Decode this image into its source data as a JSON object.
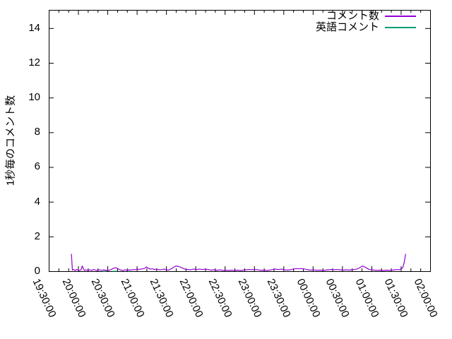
{
  "chart_data": {
    "type": "line",
    "title": "",
    "xlabel": "",
    "ylabel": "1秒毎のコメント数",
    "ylim": [
      0,
      15.05
    ],
    "yticks": [
      0,
      2,
      4,
      6,
      8,
      10,
      12,
      14
    ],
    "xtick_labels": [
      "19:30:00",
      "20:00:00",
      "20:30:00",
      "21:00:00",
      "21:30:00",
      "22:00:00",
      "22:30:00",
      "23:00:00",
      "23:30:00",
      "00:00:00",
      "00:30:00",
      "01:00:00",
      "01:30:00",
      "02:00:00"
    ],
    "x_total_minutes": 390,
    "xtick_interval_minutes": 30,
    "minor_xtick_interval_minutes": 10,
    "grid": "off",
    "legend_position": "top-right-inside",
    "axis_color": "#000000",
    "background_color": "#ffffff",
    "series": [
      {
        "name": "コメント数",
        "color": "#9400d3",
        "points": [
          [
            23.2,
            1.0
          ],
          [
            24.2,
            0.06
          ],
          [
            25.5,
            0.1
          ],
          [
            27,
            0.04
          ],
          [
            28.5,
            0.1
          ],
          [
            30,
            0.06
          ],
          [
            31.5,
            0.04
          ],
          [
            33,
            0.08
          ],
          [
            34.3,
            0.3
          ],
          [
            35.5,
            0.14
          ],
          [
            36.5,
            0.04
          ],
          [
            38,
            0.08
          ],
          [
            40,
            0.04
          ],
          [
            42,
            0.08
          ],
          [
            44,
            0.05
          ],
          [
            46,
            0.1
          ],
          [
            48,
            0.06
          ],
          [
            50,
            0.04
          ],
          [
            52,
            0.08
          ],
          [
            54,
            0.05
          ],
          [
            56,
            0.08
          ],
          [
            58,
            0.06
          ],
          [
            60,
            0.04
          ],
          [
            62,
            0.06
          ],
          [
            64,
            0.1
          ],
          [
            66,
            0.16
          ],
          [
            68,
            0.2
          ],
          [
            70,
            0.17
          ],
          [
            72,
            0.1
          ],
          [
            74,
            0.06
          ],
          [
            76,
            0.04
          ],
          [
            78,
            0.08
          ],
          [
            80,
            0.05
          ],
          [
            82,
            0.08
          ],
          [
            84,
            0.06
          ],
          [
            86,
            0.1
          ],
          [
            88,
            0.08
          ],
          [
            90,
            0.12
          ],
          [
            92,
            0.1
          ],
          [
            94,
            0.12
          ],
          [
            96,
            0.14
          ],
          [
            98,
            0.16
          ],
          [
            100,
            0.25
          ],
          [
            102,
            0.16
          ],
          [
            104,
            0.12
          ],
          [
            106,
            0.14
          ],
          [
            108,
            0.1
          ],
          [
            110,
            0.12
          ],
          [
            112,
            0.1
          ],
          [
            114,
            0.08
          ],
          [
            116,
            0.1
          ],
          [
            118,
            0.12
          ],
          [
            120,
            0.08
          ],
          [
            122,
            0.06
          ],
          [
            124,
            0.1
          ],
          [
            127,
            0.2
          ],
          [
            130,
            0.3
          ],
          [
            133,
            0.27
          ],
          [
            136,
            0.2
          ],
          [
            139,
            0.12
          ],
          [
            142,
            0.1
          ],
          [
            145,
            0.08
          ],
          [
            148,
            0.12
          ],
          [
            151,
            0.1
          ],
          [
            154,
            0.12
          ],
          [
            157,
            0.1
          ],
          [
            160,
            0.12
          ],
          [
            163,
            0.1
          ],
          [
            166,
            0.06
          ],
          [
            169,
            0.08
          ],
          [
            172,
            0.05
          ],
          [
            175,
            0.08
          ],
          [
            178,
            0.04
          ],
          [
            181,
            0.06
          ],
          [
            184,
            0.04
          ],
          [
            187,
            0.06
          ],
          [
            190,
            0.04
          ],
          [
            193,
            0.06
          ],
          [
            196,
            0.04
          ],
          [
            199,
            0.06
          ],
          [
            202,
            0.08
          ],
          [
            205,
            0.1
          ],
          [
            208,
            0.08
          ],
          [
            211,
            0.1
          ],
          [
            214,
            0.08
          ],
          [
            217,
            0.05
          ],
          [
            220,
            0.06
          ],
          [
            223,
            0.04
          ],
          [
            226,
            0.06
          ],
          [
            229,
            0.1
          ],
          [
            232,
            0.12
          ],
          [
            235,
            0.1
          ],
          [
            238,
            0.12
          ],
          [
            241,
            0.08
          ],
          [
            244,
            0.06
          ],
          [
            247,
            0.08
          ],
          [
            250,
            0.12
          ],
          [
            253,
            0.15
          ],
          [
            256,
            0.14
          ],
          [
            259,
            0.15
          ],
          [
            262,
            0.12
          ],
          [
            265,
            0.08
          ],
          [
            268,
            0.06
          ],
          [
            271,
            0.08
          ],
          [
            274,
            0.05
          ],
          [
            277,
            0.06
          ],
          [
            280,
            0.05
          ],
          [
            283,
            0.06
          ],
          [
            286,
            0.08
          ],
          [
            289,
            0.1
          ],
          [
            292,
            0.08
          ],
          [
            295,
            0.1
          ],
          [
            298,
            0.08
          ],
          [
            301,
            0.06
          ],
          [
            304,
            0.08
          ],
          [
            307,
            0.06
          ],
          [
            310,
            0.08
          ],
          [
            313,
            0.1
          ],
          [
            315,
            0.12
          ],
          [
            318,
            0.2
          ],
          [
            321,
            0.3
          ],
          [
            324,
            0.22
          ],
          [
            327,
            0.12
          ],
          [
            330,
            0.08
          ],
          [
            333,
            0.06
          ],
          [
            336,
            0.05
          ],
          [
            339,
            0.06
          ],
          [
            342,
            0.04
          ],
          [
            345,
            0.06
          ],
          [
            348,
            0.05
          ],
          [
            351,
            0.06
          ],
          [
            354,
            0.08
          ],
          [
            356,
            0.1
          ],
          [
            358,
            0.08
          ],
          [
            360,
            0.12
          ],
          [
            362,
            0.2
          ],
          [
            363.5,
            0.5
          ],
          [
            365,
            1.0
          ]
        ]
      },
      {
        "name": "英語コメント",
        "color": "#009e73",
        "points": [
          [
            55.5,
            0
          ],
          [
            57.5,
            0
          ],
          [
            59,
            0
          ],
          null,
          [
            65.5,
            0
          ],
          [
            67.5,
            0
          ],
          [
            70,
            0
          ],
          null,
          [
            81,
            0
          ],
          [
            82.5,
            0
          ]
        ]
      }
    ]
  }
}
